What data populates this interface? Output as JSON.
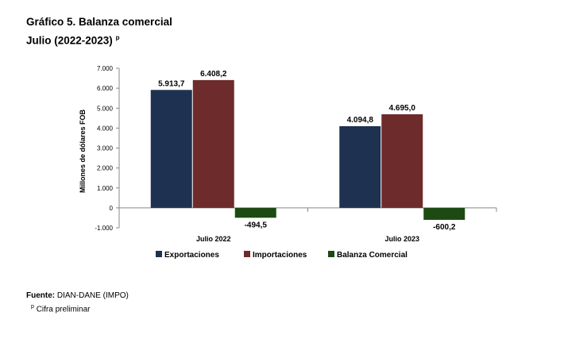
{
  "header": {
    "title_line1": "Gráfico 5. Balanza comercial",
    "title_line2": "Julio (2022-2023)",
    "title_sup": "p"
  },
  "chart_data": {
    "type": "bar",
    "categories": [
      "Julio 2022",
      "Julio 2023"
    ],
    "series": [
      {
        "name": "Exportaciones",
        "values": [
          5913.7,
          4094.8
        ],
        "labels": [
          "5.913,7",
          "4.094,8"
        ],
        "color": "#1f3150"
      },
      {
        "name": "Importaciones",
        "values": [
          6408.2,
          4695.0
        ],
        "labels": [
          "6.408,2",
          "4.695,0"
        ],
        "color": "#6e2b2b"
      },
      {
        "name": "Balanza Comercial",
        "values": [
          -494.5,
          -600.2
        ],
        "labels": [
          "-494,5",
          "-600,2"
        ],
        "color": "#1c4a12"
      }
    ],
    "ylabel": "Millones de dólares FOB",
    "ylim": [
      -1000,
      7000
    ],
    "yticks": [
      -1000,
      0,
      1000,
      2000,
      3000,
      4000,
      5000,
      6000,
      7000
    ],
    "ytick_labels": [
      "-1.000",
      "0",
      "1.000",
      "2.000",
      "3.000",
      "4.000",
      "5.000",
      "6.000",
      "7.000"
    ],
    "legend_position": "bottom"
  },
  "footer": {
    "source_label": "Fuente:",
    "source_text": "DIAN-DANE (IMPO)",
    "note_sup": "p",
    "note_text": "Cifra preliminar"
  }
}
